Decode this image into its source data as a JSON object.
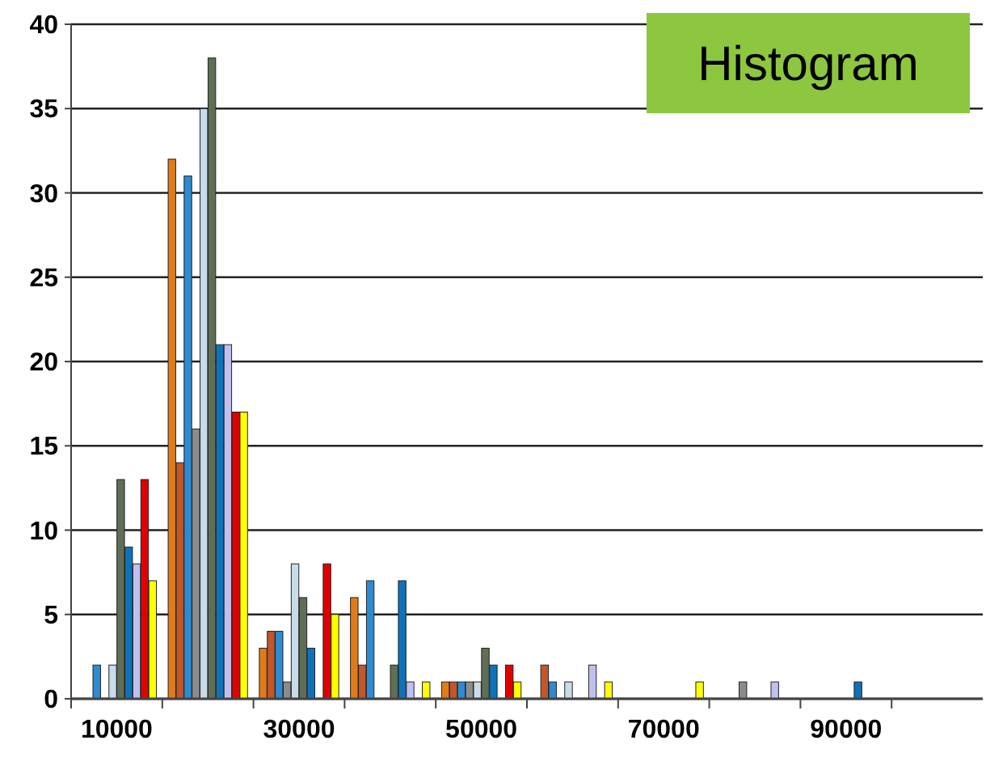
{
  "chart_data": {
    "type": "bar",
    "title": "Histogram",
    "categories": [
      "10000",
      null,
      "30000",
      null,
      "50000",
      null,
      "70000",
      null,
      "90000",
      null
    ],
    "series": [
      {
        "color": "#e07b1a",
        "values": [
          0,
          32,
          3,
          6,
          1,
          0,
          0,
          0,
          0,
          0
        ]
      },
      {
        "color": "#c0582b",
        "values": [
          0,
          14,
          4,
          2,
          1,
          2,
          0,
          0,
          0,
          0
        ]
      },
      {
        "color": "#2e8bd0",
        "values": [
          2,
          31,
          4,
          7,
          1,
          1,
          0,
          0,
          0,
          0
        ]
      },
      {
        "color": "#8c8c8c",
        "values": [
          0,
          16,
          1,
          0,
          1,
          0,
          0,
          1,
          0,
          0
        ]
      },
      {
        "color": "#c8dcea",
        "values": [
          2,
          35,
          8,
          0,
          1,
          1,
          0,
          0,
          0,
          0
        ]
      },
      {
        "color": "#5f6f55",
        "values": [
          13,
          38,
          6,
          2,
          3,
          0,
          0,
          0,
          0,
          0
        ]
      },
      {
        "color": "#0e72b8",
        "values": [
          9,
          21,
          3,
          7,
          2,
          0,
          0,
          0,
          1,
          0
        ]
      },
      {
        "color": "#c0c0f0",
        "values": [
          8,
          21,
          0,
          1,
          0,
          2,
          0,
          1,
          0,
          0
        ]
      },
      {
        "color": "#e00000",
        "values": [
          13,
          17,
          8,
          0,
          2,
          0,
          0,
          0,
          0,
          0
        ]
      },
      {
        "color": "#ffff00",
        "values": [
          7,
          17,
          5,
          1,
          1,
          1,
          1,
          0,
          0,
          0
        ]
      }
    ],
    "ylim": [
      0,
      40
    ],
    "yticks": [
      0,
      5,
      10,
      15,
      20,
      25,
      30,
      35,
      40
    ],
    "grid": "y"
  }
}
